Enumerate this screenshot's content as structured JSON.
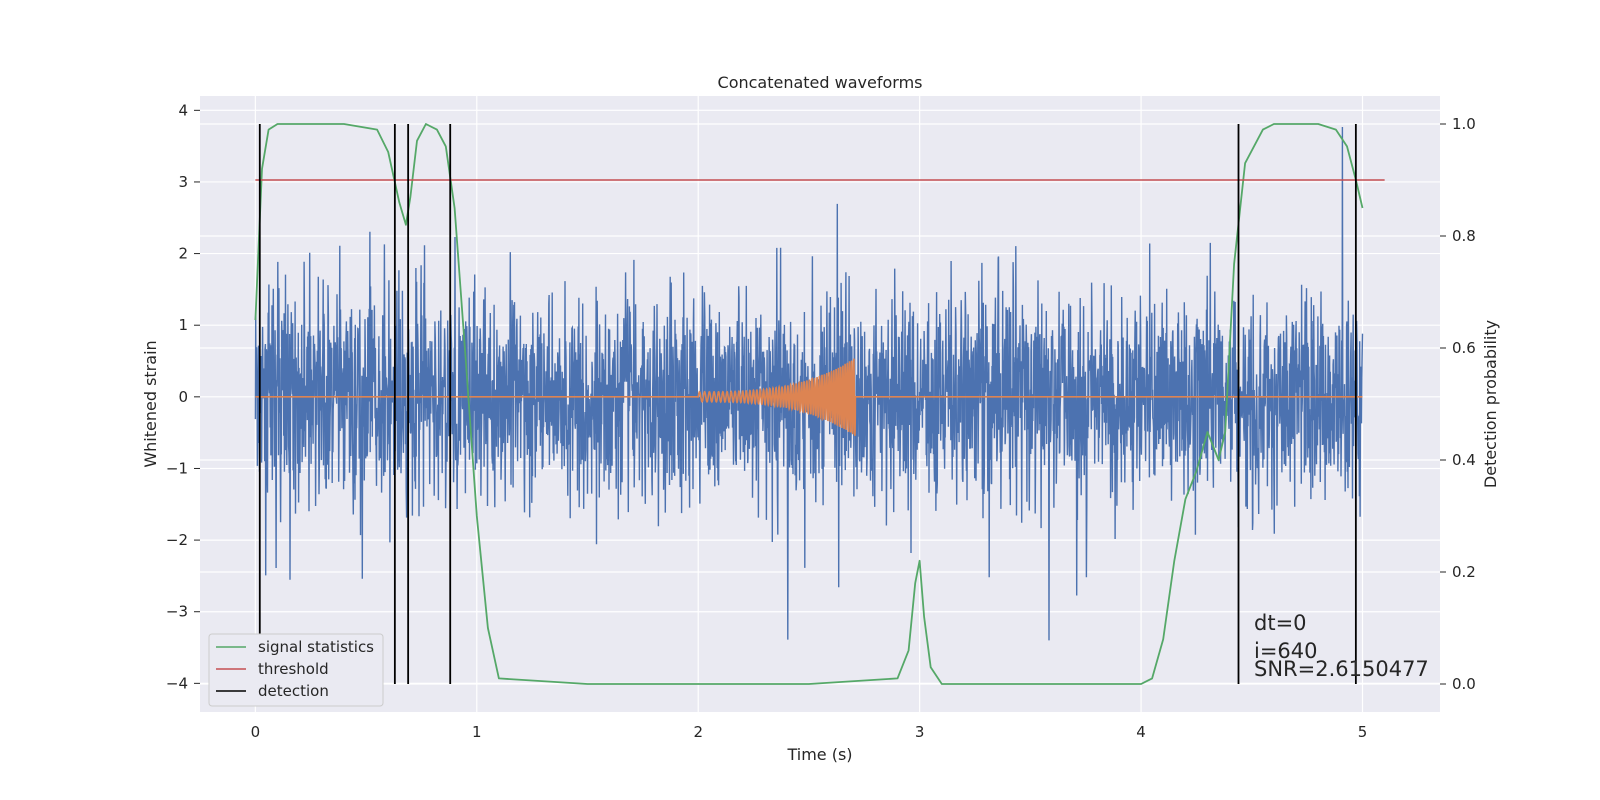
{
  "chart_data": {
    "type": "line",
    "title": "Concatenated waveforms",
    "xlabel": "Time (s)",
    "ylabel": "Whitened strain",
    "y2label": "Detection probability",
    "xlim": [
      -0.25,
      5.35
    ],
    "ylim": [
      -4.4,
      4.2
    ],
    "y2lim": [
      -0.05,
      1.05
    ],
    "xticks": [
      0,
      1,
      2,
      3,
      4,
      5
    ],
    "yticks": [
      -4,
      -3,
      -2,
      -1,
      0,
      1,
      2,
      3,
      4
    ],
    "y2ticks": [
      0.0,
      0.2,
      0.4,
      0.6,
      0.8,
      1.0
    ],
    "y2ticklabels": [
      "0.0",
      "0.2",
      "0.4",
      "0.6",
      "0.8",
      "1.0"
    ],
    "grid": true,
    "legend_position": "lower-left",
    "colors": {
      "strain": "#4c72b0",
      "template": "#dd8452",
      "signal_statistics": "#55a868",
      "threshold": "#c44e52",
      "detection": "#000000",
      "plot_bg": "#eaeaf2"
    },
    "series": [
      {
        "name": "",
        "axis": "left",
        "description": "whitened strain noise",
        "x_range": [
          0,
          5
        ],
        "typical_peak_range": [
          -3.1,
          3.9
        ]
      },
      {
        "name": "",
        "axis": "left",
        "description": "injected chirp waveform",
        "x_range": [
          2.0,
          2.71
        ],
        "peak_amplitude": 0.48
      },
      {
        "name": "signal statistics",
        "axis": "right",
        "x": [
          0.0,
          0.03,
          0.06,
          0.1,
          0.2,
          0.4,
          0.55,
          0.6,
          0.65,
          0.68,
          0.7,
          0.73,
          0.77,
          0.82,
          0.86,
          0.9,
          0.95,
          1.0,
          1.05,
          1.1,
          1.5,
          2.0,
          2.5,
          2.9,
          2.95,
          2.98,
          3.0,
          3.02,
          3.05,
          3.1,
          3.5,
          4.0,
          4.05,
          4.1,
          4.15,
          4.2,
          4.25,
          4.3,
          4.35,
          4.38,
          4.42,
          4.47,
          4.55,
          4.6,
          4.8,
          4.88,
          4.93,
          4.97,
          5.0
        ],
        "values": [
          0.65,
          0.92,
          0.99,
          1.0,
          1.0,
          1.0,
          0.99,
          0.95,
          0.86,
          0.82,
          0.87,
          0.97,
          1.0,
          0.99,
          0.96,
          0.85,
          0.58,
          0.3,
          0.1,
          0.01,
          0.0,
          0.0,
          0.0,
          0.01,
          0.06,
          0.18,
          0.22,
          0.12,
          0.03,
          0.0,
          0.0,
          0.0,
          0.01,
          0.08,
          0.22,
          0.33,
          0.38,
          0.45,
          0.4,
          0.45,
          0.75,
          0.93,
          0.99,
          1.0,
          1.0,
          0.99,
          0.96,
          0.9,
          0.85
        ]
      },
      {
        "name": "threshold",
        "axis": "right",
        "x": [
          0.0,
          5.1
        ],
        "values": [
          0.9,
          0.9
        ]
      }
    ],
    "detections": [
      0.02,
      0.63,
      0.69,
      0.88,
      4.44,
      4.97
    ],
    "detection_label": "detection",
    "annotations": [
      "dt=0",
      "i=640",
      "SNR=2.6150477"
    ]
  }
}
